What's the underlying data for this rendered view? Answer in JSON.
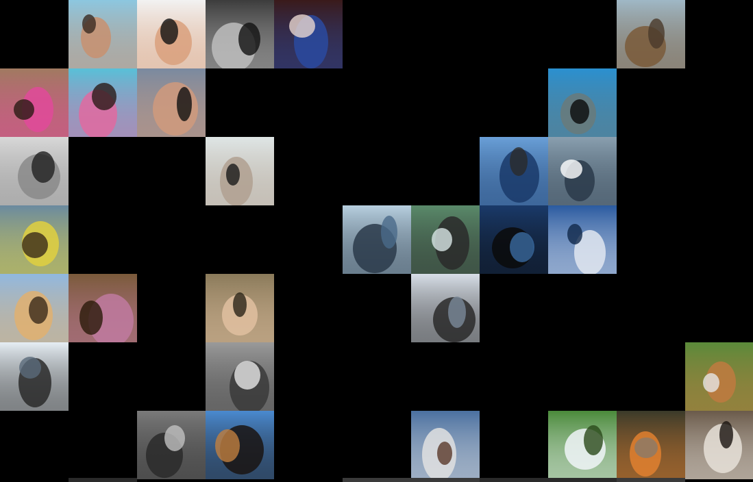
{
  "tiles": [
    {
      "subject": "friends-on-beach",
      "col": 1,
      "row": 0,
      "colors": [
        "#8cc7e0",
        "#c89070",
        "#3a2a22"
      ]
    },
    {
      "subject": "woman-with-dumbbells",
      "col": 2,
      "row": 0,
      "colors": [
        "#f2f2f2",
        "#d9a07c",
        "#111111"
      ]
    },
    {
      "subject": "bw-seated-figure",
      "col": 3,
      "row": 0,
      "colors": [
        "#3c3c3c",
        "#bdbdbd",
        "#121212"
      ]
    },
    {
      "subject": "two-women-with-phone",
      "col": 4,
      "row": 0,
      "colors": [
        "#3a1a1a",
        "#2a4aa0",
        "#e8d6d0"
      ]
    },
    {
      "subject": "sea-lions-on-dock",
      "col": 9,
      "row": 0,
      "colors": [
        "#9fb8c6",
        "#7a5a3a",
        "#4a3a2a"
      ]
    },
    {
      "subject": "women-selfie-pink-bikini",
      "col": 0,
      "row": 1,
      "colors": [
        "#a07a60",
        "#e04a9a",
        "#2a1a14"
      ]
    },
    {
      "subject": "two-women-in-pool",
      "col": 1,
      "row": 1,
      "colors": [
        "#58c0d8",
        "#e06aa0",
        "#2a1a18"
      ]
    },
    {
      "subject": "woman-black-swimsuit",
      "col": 2,
      "row": 1,
      "colors": [
        "#7a8aa0",
        "#d09a7c",
        "#101010"
      ]
    },
    {
      "subject": "orca-show-pool",
      "col": 8,
      "row": 1,
      "colors": [
        "#2a90d0",
        "#6a7a7a",
        "#0a0a0a"
      ]
    },
    {
      "subject": "bw-boy-in-bathtub",
      "col": 0,
      "row": 2,
      "colors": [
        "#d8d8d8",
        "#8a8a8a",
        "#202020"
      ]
    },
    {
      "subject": "person-on-white-bed",
      "col": 3,
      "row": 2,
      "colors": [
        "#dfe6e6",
        "#b0a090",
        "#1a1a1a"
      ]
    },
    {
      "subject": "whale-breaching",
      "col": 7,
      "row": 2,
      "colors": [
        "#6aa0d8",
        "#1a3a6a",
        "#2a2a2a"
      ]
    },
    {
      "subject": "whale-splash-closeup",
      "col": 8,
      "row": 2,
      "colors": [
        "#8aa0b0",
        "#2a3a4a",
        "#ffffff"
      ]
    },
    {
      "subject": "person-with-snorkel-mask",
      "col": 0,
      "row": 3,
      "colors": [
        "#6a8aa0",
        "#e0d040",
        "#3a2a1a"
      ]
    },
    {
      "subject": "submarine-in-ice",
      "col": 5,
      "row": 3,
      "colors": [
        "#b8d0e0",
        "#2a3a4a",
        "#4a6a8a"
      ]
    },
    {
      "subject": "whale-head-above-water",
      "col": 6,
      "row": 3,
      "colors": [
        "#5a8a6a",
        "#2a2a2a",
        "#d8e6e6"
      ]
    },
    {
      "subject": "orca-dorsal-fin",
      "col": 7,
      "row": 3,
      "colors": [
        "#1a3a6a",
        "#0a0a0a",
        "#3a6aa0"
      ]
    },
    {
      "subject": "dolphins-leaping",
      "col": 8,
      "row": 3,
      "colors": [
        "#2a5aa0",
        "#e0e6f0",
        "#10284a"
      ]
    },
    {
      "subject": "two-divers-with-masks",
      "col": 0,
      "row": 4,
      "colors": [
        "#90b8e0",
        "#e0b070",
        "#3a2a1a"
      ]
    },
    {
      "subject": "horse-with-pink-halter",
      "col": 1,
      "row": 4,
      "colors": [
        "#7a5a3a",
        "#c07aa0",
        "#2a1a0a"
      ]
    },
    {
      "subject": "legs-walking-on-path",
      "col": 3,
      "row": 4,
      "colors": [
        "#8a7a5a",
        "#e0c0a0",
        "#2a2418"
      ]
    },
    {
      "subject": "whale-fluke-in-water",
      "col": 6,
      "row": 4,
      "colors": [
        "#d8dfe8",
        "#2a2a2a",
        "#7a8a9a"
      ]
    },
    {
      "subject": "man-in-snow-gear",
      "col": 0,
      "row": 5,
      "colors": [
        "#e6eef4",
        "#2a2a2a",
        "#5a6a7a"
      ]
    },
    {
      "subject": "dog-under-table",
      "col": 3,
      "row": 5,
      "colors": [
        "#9a9a9a",
        "#3a3a3a",
        "#e6e6e6"
      ]
    },
    {
      "subject": "cocker-spaniel-on-grass",
      "col": 10,
      "row": 5,
      "colors": [
        "#5a8a3a",
        "#c07a40",
        "#e6e6e6"
      ]
    },
    {
      "subject": "bw-forest-path",
      "col": 2,
      "row": 6,
      "colors": [
        "#7a7a7a",
        "#2a2a2a",
        "#c0c0c0"
      ]
    },
    {
      "subject": "black-tan-dog-on-bed",
      "col": 3,
      "row": 6,
      "colors": [
        "#4a8ad0",
        "#1a1412",
        "#c08040"
      ]
    },
    {
      "subject": "husky-in-water",
      "col": 6,
      "row": 6,
      "colors": [
        "#4a70a0",
        "#e0e0e0",
        "#5a3a2a"
      ]
    },
    {
      "subject": "dogs-in-park",
      "col": 8,
      "row": 6,
      "colors": [
        "#4a8a3a",
        "#f0f4f8",
        "#2a4a1a"
      ]
    },
    {
      "subject": "dog-with-cone",
      "col": 9,
      "row": 6,
      "colors": [
        "#3a3a2a",
        "#e08030",
        "#8a7a6a"
      ]
    },
    {
      "subject": "dog-on-couch",
      "col": 10,
      "row": 6,
      "colors": [
        "#6a5a4a",
        "#e6e0d8",
        "#1a1410"
      ]
    }
  ]
}
